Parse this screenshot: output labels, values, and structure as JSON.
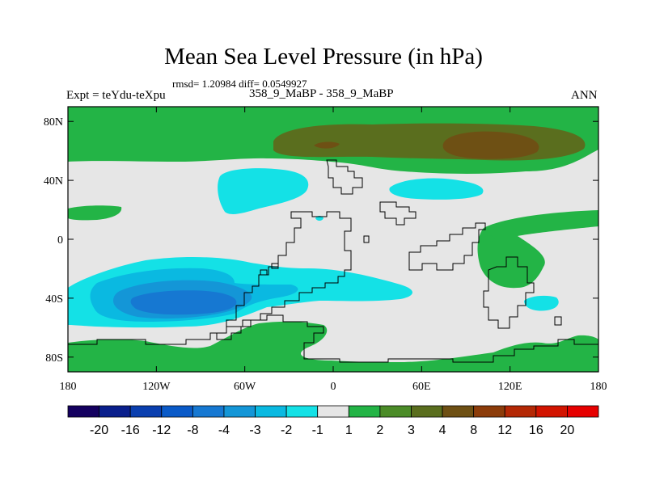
{
  "chart_data": {
    "type": "heatmap",
    "title": "Mean Sea Level Pressure (in hPa)",
    "stats": "rmsd= 1.20984 diff= 0.0549927",
    "expt_left": "Expt = teYdu-teXpu",
    "expt_center": "358_9_MaBP - 358_9_MaBP",
    "expt_right": "ANN",
    "x_ticks": [
      {
        "value": -180,
        "label": "180"
      },
      {
        "value": -120,
        "label": "120W"
      },
      {
        "value": -60,
        "label": "60W"
      },
      {
        "value": 0,
        "label": "0"
      },
      {
        "value": 60,
        "label": "60E"
      },
      {
        "value": 120,
        "label": "120E"
      },
      {
        "value": 180,
        "label": "180"
      }
    ],
    "y_ticks": [
      {
        "value": 80,
        "label": "80N"
      },
      {
        "value": 40,
        "label": "40N"
      },
      {
        "value": 0,
        "label": "0"
      },
      {
        "value": -40,
        "label": "40S"
      },
      {
        "value": -80,
        "label": "80S"
      }
    ],
    "xlim": [
      -180,
      180
    ],
    "ylim": [
      -90,
      90
    ],
    "levels": [
      "-20",
      "-16",
      "-12",
      "-8",
      "-4",
      "-3",
      "-2",
      "-1",
      "1",
      "2",
      "3",
      "4",
      "8",
      "12",
      "16",
      "20"
    ],
    "colors": [
      "#14005f",
      "#0a1f8c",
      "#0a3faf",
      "#0a5ac8",
      "#1678d2",
      "#1496d7",
      "#0ab9e1",
      "#14e1e6",
      "#e6e6e6",
      "#23b446",
      "#4b8c28",
      "#5a6e1e",
      "#6e5014",
      "#8c3c0a",
      "#b42805",
      "#d21400",
      "#e60000"
    ],
    "regions": [
      {
        "name": "north-band",
        "level": "1 to 2",
        "color": "#23b446"
      },
      {
        "name": "north-inner",
        "level": "3 to 4",
        "color": "#5a6e1e"
      },
      {
        "name": "north-core",
        "level": "4 to 8",
        "color": "#6e5014"
      },
      {
        "name": "southern-low",
        "level": "-3 to -2",
        "color": "#0ab9e1"
      },
      {
        "name": "southern-low-core",
        "level": "-4 to -3",
        "color": "#1496d7"
      },
      {
        "name": "southern-low-center",
        "level": "-8 to -4",
        "color": "#1678d2"
      },
      {
        "name": "south-band",
        "level": "1 to 2",
        "color": "#23b446"
      }
    ]
  }
}
